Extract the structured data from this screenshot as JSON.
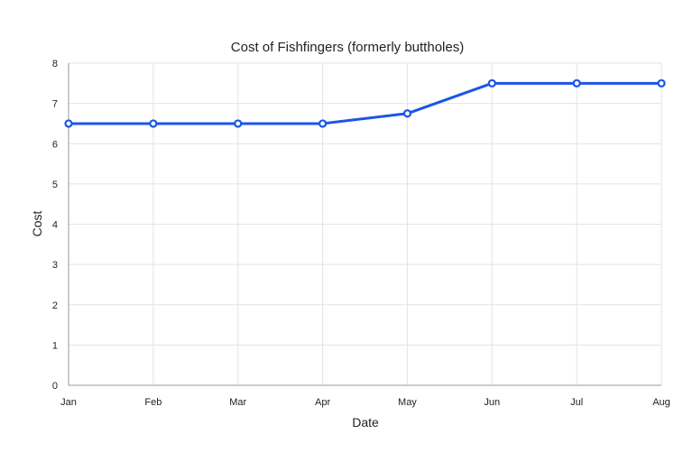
{
  "chart_data": {
    "type": "line",
    "title": "Cost of Fishfingers (formerly buttholes)",
    "xlabel": "Date",
    "ylabel": "Cost",
    "categories": [
      "Jan",
      "Feb",
      "Mar",
      "Apr",
      "May",
      "Jun",
      "Jul",
      "Aug"
    ],
    "series": [
      {
        "values": [
          6.5,
          6.5,
          6.5,
          6.5,
          6.75,
          7.5,
          7.5,
          7.5
        ]
      }
    ],
    "ylim": [
      0,
      8
    ],
    "yticks": [
      0,
      1,
      2,
      3,
      4,
      5,
      6,
      7,
      8
    ],
    "grid": true,
    "legend": "none",
    "colors": {
      "line": "#1a56e6"
    }
  }
}
